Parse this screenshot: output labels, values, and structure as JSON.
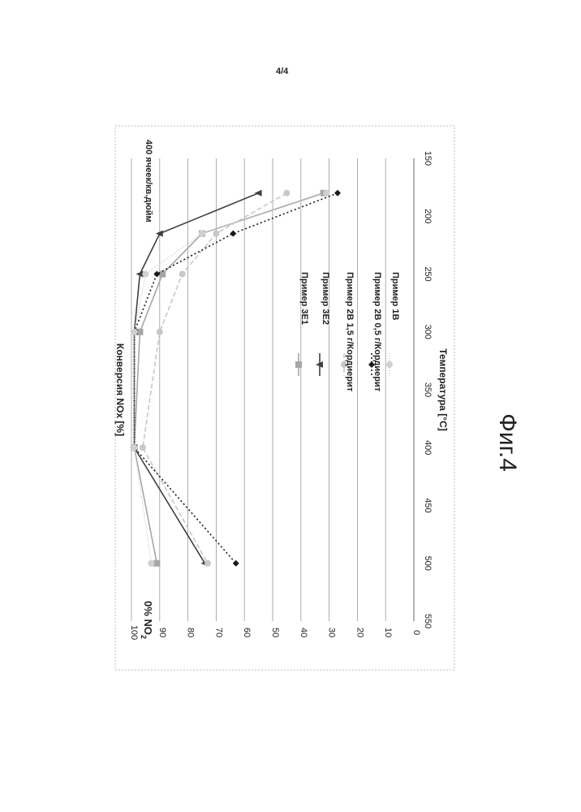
{
  "page": {
    "number": "4/4",
    "figure_label": "Фиг.4"
  },
  "chart_data": {
    "type": "line",
    "orientation": "rotated 90 degrees clockwise",
    "title": "",
    "xlabel": "Температура [°C]",
    "ylabel": "Конверсия NOx [%]",
    "xlim": [
      150,
      550
    ],
    "ylim": [
      0,
      100
    ],
    "xticks": [
      150,
      200,
      250,
      300,
      350,
      400,
      450,
      500,
      550
    ],
    "yticks": [
      0,
      10,
      20,
      30,
      40,
      50,
      60,
      70,
      80,
      90,
      100
    ],
    "grid": "horizontal gridlines at each y tick",
    "legend_position": "center-right",
    "annotations": {
      "no2_text": "0% NO",
      "no2_subscript": "2",
      "cell_density": "400 ячеек/кв.дюйм"
    },
    "series": [
      {
        "name": "Пример 3E1",
        "color": "#a6a6a6",
        "dash": "none",
        "marker": "square",
        "x": [
          180,
          215,
          250,
          300,
          400,
          500
        ],
        "y": [
          32,
          75,
          89,
          97,
          99,
          91
        ]
      },
      {
        "name": "Пример 3E2",
        "color": "#404040",
        "dash": "none",
        "marker": "triangle",
        "x": [
          180,
          215,
          250,
          300,
          400,
          500
        ],
        "y": [
          55,
          90,
          97,
          99,
          99,
          74
        ]
      },
      {
        "name": "Пример 2B 1,5 г/Кордиерит",
        "color": "#c8c8c8",
        "dash": "6,3",
        "marker": "circle",
        "x": [
          180,
          215,
          250,
          300,
          400,
          500
        ],
        "y": [
          45,
          70,
          82,
          90,
          96,
          73
        ]
      },
      {
        "name": "Пример 2B 0,5 г/Кордиерит",
        "color": "#1a1a1a",
        "dash": "2,3",
        "marker": "diamond",
        "x": [
          180,
          215,
          250,
          300,
          400,
          500
        ],
        "y": [
          27,
          64,
          91,
          99,
          99,
          63
        ]
      },
      {
        "name": "Пример 1B",
        "color": "#d0d0d0",
        "dash": "1,2",
        "marker": "circle",
        "x": [
          180,
          215,
          250,
          300,
          400,
          500
        ],
        "y": [
          31,
          75,
          95,
          99,
          99,
          93
        ]
      }
    ]
  }
}
